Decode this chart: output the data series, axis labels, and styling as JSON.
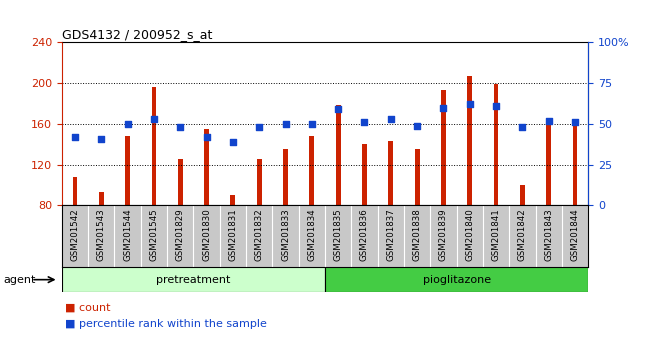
{
  "title": "GDS4132 / 200952_s_at",
  "samples": [
    "GSM201542",
    "GSM201543",
    "GSM201544",
    "GSM201545",
    "GSM201829",
    "GSM201830",
    "GSM201831",
    "GSM201832",
    "GSM201833",
    "GSM201834",
    "GSM201835",
    "GSM201836",
    "GSM201837",
    "GSM201838",
    "GSM201839",
    "GSM201840",
    "GSM201841",
    "GSM201842",
    "GSM201843",
    "GSM201844"
  ],
  "counts": [
    108,
    93,
    148,
    196,
    126,
    155,
    90,
    126,
    135,
    148,
    179,
    140,
    143,
    135,
    193,
    207,
    199,
    100,
    163,
    162
  ],
  "percentiles": [
    42,
    41,
    50,
    53,
    48,
    42,
    39,
    48,
    50,
    50,
    59,
    51,
    53,
    49,
    60,
    62,
    61,
    48,
    52,
    51
  ],
  "pretreatment_count": 10,
  "pioglitazone_count": 10,
  "bar_color": "#cc2200",
  "dot_color": "#1144cc",
  "ylim_left": [
    80,
    240
  ],
  "ylim_right": [
    0,
    100
  ],
  "yticks_left": [
    80,
    120,
    160,
    200,
    240
  ],
  "yticks_right": [
    0,
    25,
    50,
    75,
    100
  ],
  "yticklabels_right": [
    "0",
    "25",
    "50",
    "75",
    "100%"
  ],
  "bg_color": "#ffffff",
  "xtick_bg_color": "#c8c8c8",
  "pretreatment_color": "#ccffcc",
  "pioglitazone_color": "#44cc44",
  "agent_label": "agent",
  "legend_count_label": "count",
  "legend_pct_label": "percentile rank within the sample"
}
